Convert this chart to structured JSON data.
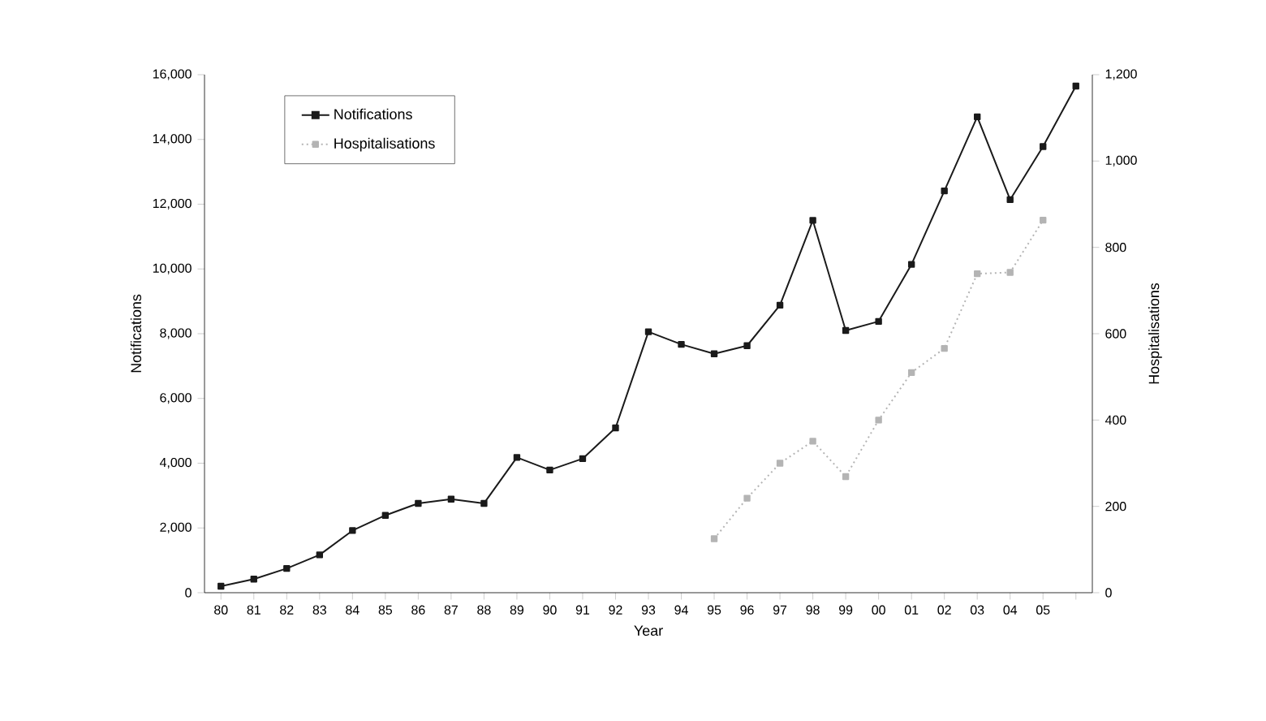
{
  "chart_data": {
    "type": "line",
    "xlabel": "Year",
    "ylabel": "Notifications",
    "y2label": "Hospitalisations",
    "categories": [
      "80",
      "81",
      "82",
      "83",
      "84",
      "85",
      "86",
      "87",
      "88",
      "89",
      "90",
      "91",
      "92",
      "93",
      "94",
      "95",
      "96",
      "97",
      "98",
      "99",
      "00",
      "01",
      "02",
      "03",
      "04",
      "05",
      null
    ],
    "series": [
      {
        "name": "Notifications",
        "color": "#1a1a1a",
        "line_style": "solid",
        "values": [
          200,
          420,
          750,
          1170,
          1920,
          2390,
          2760,
          2890,
          2760,
          4180,
          3790,
          4140,
          5090,
          8060,
          7670,
          7380,
          7630,
          8880,
          11500,
          8100,
          8380,
          10140,
          12410,
          14700,
          12140,
          13780,
          15650
        ]
      },
      {
        "name": "Hospitalisations",
        "color": "#b4b4b4",
        "line_style": "dotted",
        "axis": "y2",
        "values": [
          null,
          null,
          null,
          null,
          null,
          null,
          null,
          null,
          null,
          null,
          null,
          null,
          null,
          null,
          null,
          125,
          219,
          300,
          351,
          269,
          400,
          510,
          566,
          739,
          742,
          863,
          null
        ]
      }
    ],
    "ylim": [
      0,
      16000
    ],
    "yticks": [
      0,
      {
        "value": 2000,
        "label": "2,000"
      },
      {
        "value": 4000,
        "label": "4,000"
      },
      {
        "value": 6000,
        "label": "6,000"
      },
      {
        "value": 8000,
        "label": "8,000"
      },
      {
        "value": 10000,
        "label": "10,000"
      },
      {
        "value": 12000,
        "label": "12,000"
      },
      {
        "value": 14000,
        "label": "14,000"
      },
      {
        "value": 16000,
        "label": "16,000"
      }
    ],
    "y2lim": [
      0,
      1200
    ],
    "y2ticks": [
      0,
      200,
      400,
      600,
      800,
      {
        "value": 1000,
        "label": "1,000"
      },
      {
        "value": 1200,
        "label": "1,200"
      }
    ],
    "grid": false,
    "legend": "top left",
    "marker": "square"
  }
}
